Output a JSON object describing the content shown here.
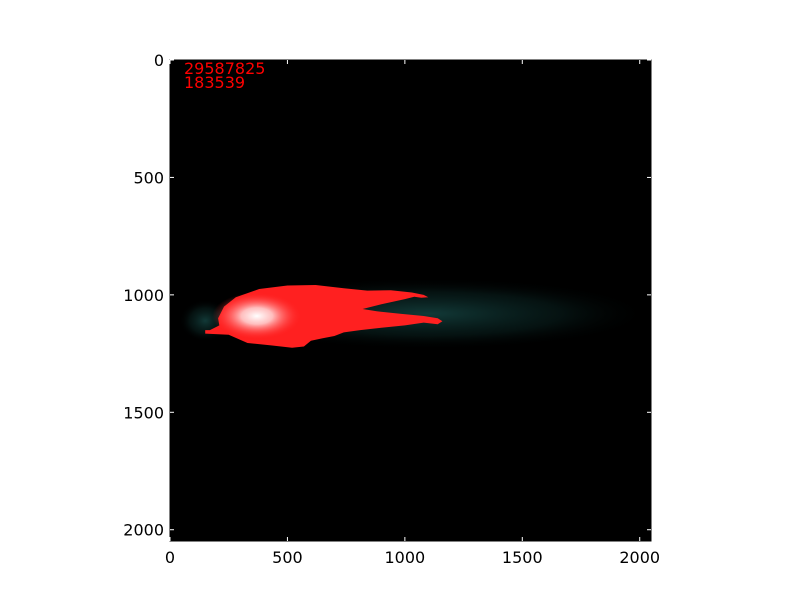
{
  "chart_data": {
    "type": "heatmap",
    "title": "",
    "xlabel": "",
    "ylabel": "",
    "xlim": [
      0,
      2048
    ],
    "ylim": [
      2048,
      0
    ],
    "y_inverted": true,
    "x_ticks": [
      0,
      500,
      1000,
      1500,
      2000
    ],
    "y_ticks": [
      0,
      500,
      1000,
      1500,
      2000
    ],
    "x_tick_labels": [
      "0",
      "500",
      "1000",
      "1500",
      "2000"
    ],
    "y_tick_labels": [
      "0",
      "500",
      "1000",
      "1500",
      "2000"
    ],
    "grid": false,
    "legend": "none",
    "annotations": [
      "29587825",
      "183539"
    ],
    "annotation_color": "#ff0000",
    "background_color": "#000000",
    "highlight_color": "#ff2020",
    "glow_color": "#0c2a2a",
    "blob": {
      "center": [
        370,
        1090
      ],
      "extent_x": [
        150,
        1160
      ],
      "extent_y": [
        955,
        1225
      ],
      "mask_outline": [
        [
          170,
          1150
        ],
        [
          210,
          1130
        ],
        [
          205,
          1100
        ],
        [
          230,
          1050
        ],
        [
          280,
          1010
        ],
        [
          380,
          975
        ],
        [
          500,
          960
        ],
        [
          620,
          958
        ],
        [
          740,
          972
        ],
        [
          840,
          982
        ],
        [
          940,
          980
        ],
        [
          1030,
          990
        ],
        [
          1080,
          1000
        ],
        [
          1100,
          1010
        ],
        [
          1070,
          1012
        ],
        [
          1040,
          1008
        ],
        [
          1000,
          1018
        ],
        [
          900,
          1040
        ],
        [
          820,
          1060
        ],
        [
          880,
          1070
        ],
        [
          980,
          1080
        ],
        [
          1080,
          1090
        ],
        [
          1140,
          1100
        ],
        [
          1160,
          1112
        ],
        [
          1140,
          1125
        ],
        [
          1080,
          1118
        ],
        [
          1000,
          1130
        ],
        [
          900,
          1140
        ],
        [
          810,
          1150
        ],
        [
          740,
          1160
        ],
        [
          700,
          1175
        ],
        [
          650,
          1185
        ],
        [
          600,
          1195
        ],
        [
          570,
          1220
        ],
        [
          520,
          1225
        ],
        [
          430,
          1215
        ],
        [
          330,
          1205
        ],
        [
          250,
          1170
        ],
        [
          150,
          1165
        ],
        [
          150,
          1150
        ],
        [
          170,
          1150
        ]
      ]
    }
  }
}
